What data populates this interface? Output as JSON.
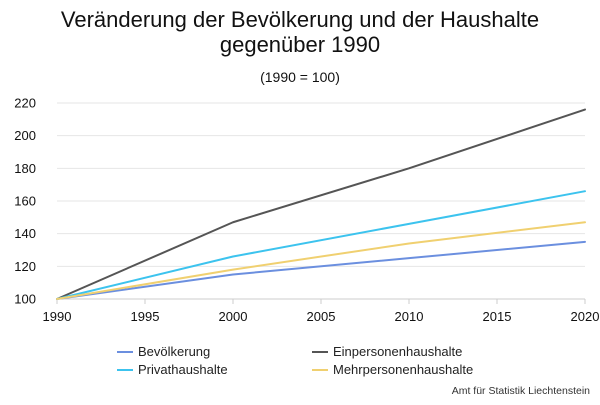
{
  "chart_data": {
    "type": "line",
    "title_lines": [
      "Veränderung der Bevölkerung und der Haushalte",
      "gegenüber 1990"
    ],
    "subtitle": "(1990 = 100)",
    "xlabel": "",
    "ylabel": "",
    "x": [
      1990,
      2000,
      2010,
      2020
    ],
    "xlim": [
      1990,
      2020
    ],
    "ylim": [
      100,
      220
    ],
    "x_ticks": [
      1990,
      1995,
      2000,
      2005,
      2010,
      2015,
      2020
    ],
    "y_ticks": [
      100,
      120,
      140,
      160,
      180,
      200,
      220
    ],
    "grid": "horizontal",
    "legend_position": "bottom",
    "series": [
      {
        "name": "Bevölkerung",
        "color": "#6b8fdf",
        "values": [
          100,
          115,
          125,
          135
        ]
      },
      {
        "name": "Einpersonenhaushalte",
        "color": "#555555",
        "values": [
          100,
          147,
          180,
          216
        ]
      },
      {
        "name": "Privathaushalte",
        "color": "#3cc3ee",
        "values": [
          100,
          126,
          146,
          166
        ]
      },
      {
        "name": "Mehrpersonenhaushalte",
        "color": "#f0d070",
        "values": [
          100,
          118,
          134,
          147
        ]
      }
    ],
    "source": "Amt für Statistik Liechtenstein"
  }
}
